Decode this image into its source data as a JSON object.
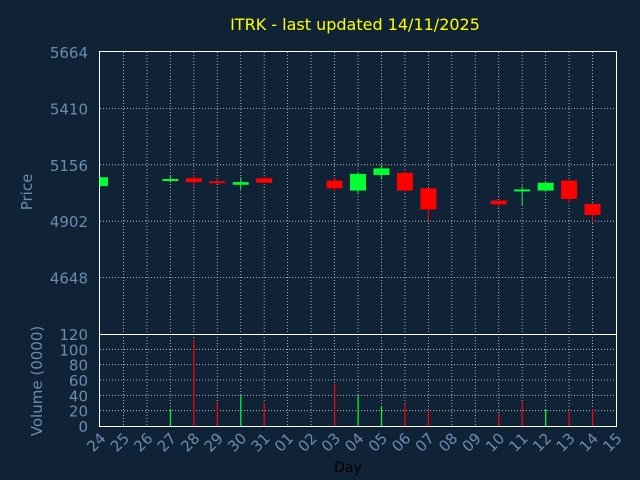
{
  "chart_data": [
    {
      "type": "candlestick",
      "title": "ITRK - last updated 14/11/2025",
      "ylabel": "Price",
      "yticks": [
        5664,
        5410,
        5156,
        4902,
        4648
      ],
      "ylim": [
        4394,
        5664
      ],
      "categories": [
        "24",
        "25",
        "26",
        "27",
        "28",
        "29",
        "30",
        "31",
        "01",
        "02",
        "03",
        "04",
        "05",
        "06",
        "07",
        "08",
        "09",
        "10",
        "11",
        "12",
        "13",
        "14",
        "15"
      ],
      "grid": true,
      "up_color": "#00ff33",
      "down_color": "#ff0000",
      "candles": [
        {
          "day": "24",
          "open": 5060,
          "close": 5100,
          "high": 5100,
          "low": 5060
        },
        {
          "day": "27",
          "open": 5085,
          "close": 5092,
          "high": 5110,
          "low": 5075
        },
        {
          "day": "28",
          "open": 5095,
          "close": 5078,
          "high": 5110,
          "low": 5060
        },
        {
          "day": "29",
          "open": 5082,
          "close": 5077,
          "high": 5095,
          "low": 5070
        },
        {
          "day": "30",
          "open": 5066,
          "close": 5078,
          "high": 5100,
          "low": 5045
        },
        {
          "day": "31",
          "open": 5095,
          "close": 5075,
          "high": 5100,
          "low": 5075
        },
        {
          "day": "03",
          "open": 5085,
          "close": 5050,
          "high": 5100,
          "low": 5035
        },
        {
          "day": "04",
          "open": 5040,
          "close": 5115,
          "high": 5120,
          "low": 5030
        },
        {
          "day": "05",
          "open": 5110,
          "close": 5140,
          "high": 5155,
          "low": 5090
        },
        {
          "day": "06",
          "open": 5120,
          "close": 5040,
          "high": 5125,
          "low": 5035
        },
        {
          "day": "07",
          "open": 5050,
          "close": 4955,
          "high": 5050,
          "low": 4905
        },
        {
          "day": "10",
          "open": 4995,
          "close": 4978,
          "high": 4995,
          "low": 4962
        },
        {
          "day": "11",
          "open": 5042,
          "close": 5045,
          "high": 5060,
          "low": 4975
        },
        {
          "day": "12",
          "open": 5040,
          "close": 5075,
          "high": 5078,
          "low": 5035
        },
        {
          "day": "13",
          "open": 5085,
          "close": 5002,
          "high": 5085,
          "low": 4985
        },
        {
          "day": "14",
          "open": 4980,
          "close": 4930,
          "high": 4980,
          "low": 4895
        }
      ]
    },
    {
      "type": "bar",
      "ylabel": "Volume (0000)",
      "xlabel": "Day",
      "yticks": [
        120,
        100,
        80,
        60,
        40,
        20,
        0
      ],
      "ylim": [
        0,
        120
      ],
      "categories": [
        "24",
        "25",
        "26",
        "27",
        "28",
        "29",
        "30",
        "31",
        "01",
        "02",
        "03",
        "04",
        "05",
        "06",
        "07",
        "08",
        "09",
        "10",
        "11",
        "12",
        "13",
        "14",
        "15"
      ],
      "bars": [
        {
          "day": "27",
          "value": 22,
          "color": "#00ff33"
        },
        {
          "day": "28",
          "value": 112,
          "color": "#ff0000"
        },
        {
          "day": "29",
          "value": 32,
          "color": "#ff0000"
        },
        {
          "day": "30",
          "value": 40,
          "color": "#00ff33"
        },
        {
          "day": "31",
          "value": 30,
          "color": "#ff0000"
        },
        {
          "day": "03",
          "value": 55,
          "color": "#ff0000"
        },
        {
          "day": "04",
          "value": 40,
          "color": "#00ff33"
        },
        {
          "day": "05",
          "value": 26,
          "color": "#00ff33"
        },
        {
          "day": "06",
          "value": 28,
          "color": "#ff0000"
        },
        {
          "day": "07",
          "value": 20,
          "color": "#ff0000"
        },
        {
          "day": "10",
          "value": 16,
          "color": "#ff0000"
        },
        {
          "day": "11",
          "value": 32,
          "color": "#ff0000"
        },
        {
          "day": "12",
          "value": 22,
          "color": "#00ff33"
        },
        {
          "day": "13",
          "value": 18,
          "color": "#ff0000"
        },
        {
          "day": "14",
          "value": 22,
          "color": "#ff0000"
        }
      ]
    }
  ]
}
